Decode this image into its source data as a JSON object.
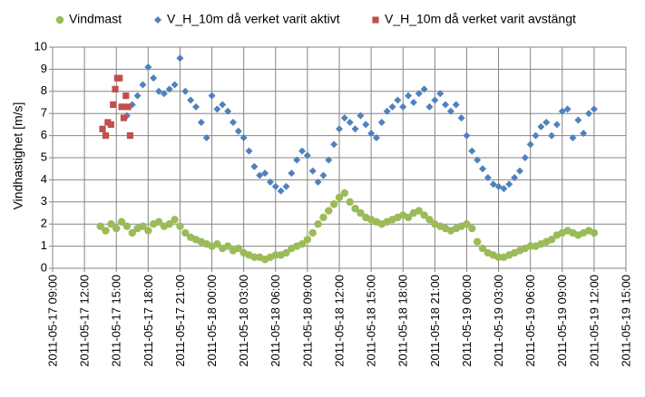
{
  "chart_data": {
    "type": "scatter",
    "title": "",
    "xlabel": "",
    "ylabel": "Vindhastighet [m/s]",
    "ylim": [
      0,
      10
    ],
    "yticks": [
      "0",
      "1",
      "2",
      "3",
      "4",
      "5",
      "6",
      "7",
      "8",
      "9",
      "10"
    ],
    "x_unit": "hours since 2011-05-17 09:00",
    "xlim": [
      0,
      54
    ],
    "xticks": [
      "2011-05-17 09:00",
      "2011-05-17 12:00",
      "2011-05-17 15:00",
      "2011-05-17 18:00",
      "2011-05-17 21:00",
      "2011-05-18 00:00",
      "2011-05-18 03:00",
      "2011-05-18 06:00",
      "2011-05-18 09:00",
      "2011-05-18 12:00",
      "2011-05-18 15:00",
      "2011-05-18 18:00",
      "2011-05-18 21:00",
      "2011-05-19 00:00",
      "2011-05-19 03:00",
      "2011-05-19 06:00",
      "2011-05-19 09:00",
      "2011-05-19 12:00",
      "2011-05-19 15:00"
    ],
    "legend_position": "top",
    "series": [
      {
        "name": "Vindmast",
        "marker": "circle",
        "color": "#9BBB59",
        "x": [
          4.5,
          5.0,
          5.5,
          6.0,
          6.5,
          7.0,
          7.5,
          8.0,
          8.5,
          9.0,
          9.5,
          10.0,
          10.5,
          11.0,
          11.5,
          12.0,
          12.5,
          13.0,
          13.5,
          14.0,
          14.5,
          15.0,
          15.5,
          16.0,
          16.5,
          17.0,
          17.5,
          18.0,
          18.5,
          19.0,
          19.5,
          20.0,
          20.5,
          21.0,
          21.5,
          22.0,
          22.5,
          23.0,
          23.5,
          24.0,
          24.5,
          25.0,
          25.5,
          26.0,
          26.5,
          27.0,
          27.5,
          28.0,
          28.5,
          29.0,
          29.5,
          30.0,
          30.5,
          31.0,
          31.5,
          32.0,
          32.5,
          33.0,
          33.5,
          34.0,
          34.5,
          35.0,
          35.5,
          36.0,
          36.5,
          37.0,
          37.5,
          38.0,
          38.5,
          39.0,
          39.5,
          40.0,
          40.5,
          41.0,
          41.5,
          42.0,
          42.5,
          43.0,
          43.5,
          44.0,
          44.5,
          45.0,
          45.5,
          46.0,
          46.5,
          47.0,
          47.5,
          48.0,
          48.5,
          49.0,
          49.5,
          50.0,
          50.5,
          51.0
        ],
        "y": [
          1.9,
          1.7,
          2.0,
          1.8,
          2.1,
          1.9,
          1.6,
          1.8,
          1.9,
          1.7,
          2.0,
          2.1,
          1.9,
          2.0,
          2.2,
          1.9,
          1.6,
          1.4,
          1.3,
          1.2,
          1.1,
          1.0,
          1.1,
          0.9,
          1.0,
          0.8,
          0.9,
          0.7,
          0.6,
          0.5,
          0.5,
          0.4,
          0.5,
          0.6,
          0.6,
          0.7,
          0.9,
          1.0,
          1.1,
          1.3,
          1.6,
          2.0,
          2.3,
          2.6,
          2.9,
          3.2,
          3.4,
          3.0,
          2.7,
          2.5,
          2.3,
          2.2,
          2.1,
          2.0,
          2.1,
          2.2,
          2.3,
          2.4,
          2.3,
          2.5,
          2.6,
          2.4,
          2.2,
          2.0,
          1.9,
          1.8,
          1.7,
          1.8,
          1.9,
          2.0,
          1.8,
          1.2,
          0.9,
          0.7,
          0.6,
          0.5,
          0.5,
          0.6,
          0.7,
          0.8,
          0.9,
          1.0,
          1.0,
          1.1,
          1.2,
          1.3,
          1.5,
          1.6,
          1.7,
          1.6,
          1.5,
          1.6,
          1.7,
          1.6
        ]
      },
      {
        "name": "V_H_10m då verket varit aktivt",
        "marker": "diamond",
        "color": "#4F81BD",
        "x": [
          7.0,
          7.5,
          8.0,
          8.5,
          9.0,
          9.5,
          10.0,
          10.5,
          11.0,
          11.5,
          12.0,
          12.5,
          13.0,
          13.5,
          14.0,
          14.5,
          15.0,
          15.5,
          16.0,
          16.5,
          17.0,
          17.5,
          18.0,
          18.5,
          19.0,
          19.5,
          20.0,
          20.5,
          21.0,
          21.5,
          22.0,
          22.5,
          23.0,
          23.5,
          24.0,
          24.5,
          25.0,
          25.5,
          26.0,
          26.5,
          27.0,
          27.5,
          28.0,
          28.5,
          29.0,
          29.5,
          30.0,
          30.5,
          31.0,
          31.5,
          32.0,
          32.5,
          33.0,
          33.5,
          34.0,
          34.5,
          35.0,
          35.5,
          36.0,
          36.5,
          37.0,
          37.5,
          38.0,
          38.5,
          39.0,
          39.5,
          40.0,
          40.5,
          41.0,
          41.5,
          42.0,
          42.5,
          43.0,
          43.5,
          44.0,
          44.5,
          45.0,
          45.5,
          46.0,
          46.5,
          47.0,
          47.5,
          48.0,
          48.5,
          49.0,
          49.5,
          50.0,
          50.5,
          51.0
        ],
        "y": [
          6.9,
          7.4,
          7.8,
          8.3,
          9.1,
          8.6,
          8.0,
          7.9,
          8.1,
          8.3,
          9.5,
          8.0,
          7.6,
          7.3,
          6.6,
          5.9,
          7.8,
          7.2,
          7.4,
          7.1,
          6.6,
          6.2,
          5.9,
          5.3,
          4.6,
          4.2,
          4.3,
          3.9,
          3.7,
          3.5,
          3.7,
          4.3,
          4.9,
          5.3,
          5.1,
          4.4,
          3.9,
          4.2,
          4.9,
          5.6,
          6.3,
          6.8,
          6.6,
          6.3,
          6.9,
          6.5,
          6.1,
          5.9,
          6.6,
          7.1,
          7.3,
          7.6,
          7.3,
          7.8,
          7.5,
          7.9,
          8.1,
          7.3,
          7.6,
          7.9,
          7.4,
          7.1,
          7.4,
          6.8,
          6.0,
          5.3,
          4.9,
          4.5,
          4.1,
          3.8,
          3.7,
          3.6,
          3.8,
          4.1,
          4.4,
          5.0,
          5.6,
          6.0,
          6.4,
          6.6,
          6.0,
          6.5,
          7.1,
          7.2,
          5.9,
          6.7,
          6.1,
          7.0,
          7.2
        ]
      },
      {
        "name": "V_H_10m då verket varit avstängt",
        "marker": "square",
        "color": "#C0504D",
        "x": [
          4.7,
          5.0,
          5.2,
          5.5,
          5.7,
          5.9,
          6.1,
          6.3,
          6.5,
          6.7,
          6.9,
          7.1,
          7.3
        ],
        "y": [
          6.3,
          6.0,
          6.6,
          6.5,
          7.4,
          8.1,
          8.6,
          8.6,
          7.3,
          6.8,
          7.8,
          7.3,
          6.0
        ]
      }
    ]
  }
}
